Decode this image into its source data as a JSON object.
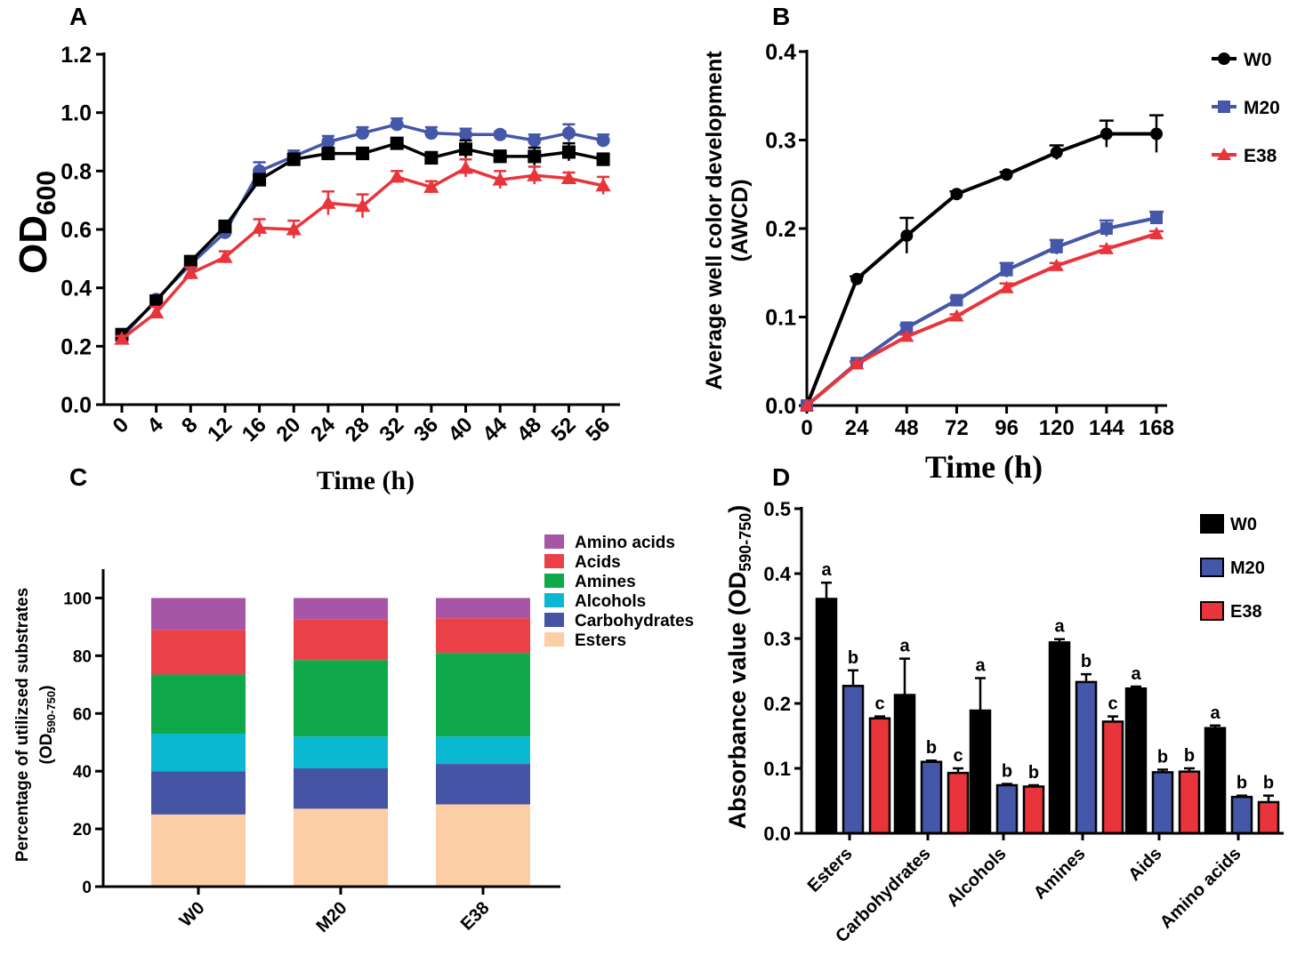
{
  "panel_labels": {
    "a": "A",
    "b": "B",
    "c": "C",
    "d": "D"
  },
  "colors": {
    "W0": "#000000",
    "M20": "#4557a8",
    "E38": "#e8343a",
    "Amino acids": "#a755a6",
    "Acids": "#ea4149",
    "Amines": "#0fa84a",
    "Alcohols": "#0ab8d2",
    "Carbohydrates": "#4554a4",
    "Esters": "#fdcda6"
  },
  "chart_data": [
    {
      "id": "A",
      "type": "line",
      "title": "",
      "xlabel": "Time (h)",
      "ylabel_main": "OD",
      "ylabel_sub": "600",
      "x": [
        0,
        4,
        8,
        12,
        16,
        20,
        24,
        28,
        32,
        36,
        40,
        44,
        48,
        52,
        56
      ],
      "xticks": [
        "0",
        "4",
        "8",
        "12",
        "16",
        "20",
        "24",
        "28",
        "32",
        "36",
        "40",
        "44",
        "48",
        "52",
        "56"
      ],
      "ylim": [
        0,
        1.2
      ],
      "yticks": [
        "0.0",
        "0.2",
        "0.4",
        "0.6",
        "0.8",
        "1.0",
        "1.2"
      ],
      "series": [
        {
          "name": "M20",
          "marker": "circle",
          "values": [
            0.23,
            0.36,
            0.48,
            0.59,
            0.8,
            0.85,
            0.9,
            0.93,
            0.96,
            0.93,
            0.925,
            0.925,
            0.905,
            0.93,
            0.905
          ],
          "errors": [
            0.01,
            0.01,
            0.01,
            0.02,
            0.03,
            0.02,
            0.02,
            0.02,
            0.02,
            0.02,
            0.02,
            0.01,
            0.02,
            0.03,
            0.02
          ]
        },
        {
          "name": "W0",
          "marker": "square",
          "values": [
            0.24,
            0.355,
            0.49,
            0.61,
            0.77,
            0.84,
            0.86,
            0.86,
            0.895,
            0.845,
            0.875,
            0.85,
            0.85,
            0.865,
            0.84
          ],
          "errors": [
            0.01,
            0.01,
            0.01,
            0.02,
            0.02,
            0.02,
            0.02,
            0.02,
            0.01,
            0.02,
            0.03,
            0.02,
            0.03,
            0.03,
            0.02
          ]
        },
        {
          "name": "E38",
          "marker": "triangle",
          "values": [
            0.225,
            0.315,
            0.45,
            0.505,
            0.605,
            0.6,
            0.69,
            0.68,
            0.78,
            0.745,
            0.81,
            0.77,
            0.785,
            0.775,
            0.75
          ],
          "errors": [
            0.01,
            0.02,
            0.02,
            0.02,
            0.03,
            0.03,
            0.04,
            0.04,
            0.02,
            0.02,
            0.03,
            0.03,
            0.03,
            0.02,
            0.03
          ]
        }
      ]
    },
    {
      "id": "B",
      "type": "line",
      "title": "",
      "xlabel": "Time (h)",
      "ylabel_line1": "Average well color development",
      "ylabel_line2": "(AWCD)",
      "x": [
        0,
        24,
        48,
        72,
        96,
        120,
        144,
        168
      ],
      "xticks": [
        "0",
        "24",
        "48",
        "72",
        "96",
        "120",
        "144",
        "168"
      ],
      "ylim": [
        0,
        0.4
      ],
      "yticks": [
        "0.0",
        "0.1",
        "0.2",
        "0.3",
        "0.4"
      ],
      "legend": [
        "W0",
        "M20",
        "E38"
      ],
      "series": [
        {
          "name": "W0",
          "marker": "circle",
          "values": [
            0.0,
            0.143,
            0.192,
            0.239,
            0.261,
            0.286,
            0.307,
            0.307
          ],
          "errors": [
            0.0,
            0.003,
            0.02,
            0.003,
            0.003,
            0.008,
            0.015,
            0.021
          ]
        },
        {
          "name": "M20",
          "marker": "square",
          "values": [
            0.0,
            0.048,
            0.088,
            0.119,
            0.153,
            0.179,
            0.2,
            0.212
          ],
          "errors": [
            0.0,
            0.002,
            0.003,
            0.003,
            0.008,
            0.008,
            0.009,
            0.007
          ]
        },
        {
          "name": "E38",
          "marker": "triangle",
          "values": [
            0.0,
            0.047,
            0.078,
            0.101,
            0.133,
            0.158,
            0.177,
            0.194
          ],
          "errors": [
            0.0,
            0.002,
            0.002,
            0.002,
            0.005,
            0.003,
            0.003,
            0.003
          ]
        }
      ]
    },
    {
      "id": "C",
      "type": "bar",
      "stacked": true,
      "title": "",
      "ylabel_line1": "Percentage of utilizsed substrates",
      "ylabel_line2_main": "(OD",
      "ylabel_line2_sub": "590-750",
      "ylabel_line2_end": ")",
      "categories": [
        "W0",
        "M20",
        "E38"
      ],
      "ylim": [
        0,
        110
      ],
      "yticks": [
        "0",
        "20",
        "40",
        "60",
        "80",
        "100"
      ],
      "legend": [
        "Amino acids",
        "Acids",
        "Amines",
        "Alcohols",
        "Carbohydrates",
        "Esters"
      ],
      "series": [
        {
          "name": "Esters",
          "values": [
            25,
            27,
            28.5
          ]
        },
        {
          "name": "Carbohydrates",
          "values": [
            15,
            14,
            14
          ]
        },
        {
          "name": "Alcohols",
          "values": [
            13,
            11,
            9.5
          ]
        },
        {
          "name": "Amines",
          "values": [
            20.5,
            26.5,
            29
          ]
        },
        {
          "name": "Acids",
          "values": [
            15.5,
            14,
            12
          ]
        },
        {
          "name": "Amino acids",
          "values": [
            11,
            7.5,
            7
          ]
        }
      ]
    },
    {
      "id": "D",
      "type": "bar",
      "title": "",
      "ylabel_main": "Absorbance value (OD",
      "ylabel_sub": "590-750",
      "ylabel_end": ")",
      "categories": [
        "Esters",
        "Carbohydrates",
        "Alcohols",
        "Amines",
        "Aids",
        "Amino acids"
      ],
      "ylim": [
        0,
        0.5
      ],
      "yticks": [
        "0.0",
        "0.1",
        "0.2",
        "0.3",
        "0.4",
        "0.5"
      ],
      "legend": [
        "W0",
        "M20",
        "E38"
      ],
      "series": [
        {
          "name": "W0",
          "values": [
            0.361,
            0.213,
            0.189,
            0.294,
            0.223,
            0.162
          ],
          "errors": [
            0.025,
            0.056,
            0.05,
            0.005,
            0.003,
            0.004
          ],
          "letters": [
            "a",
            "a",
            "a",
            "a",
            "a",
            "a"
          ]
        },
        {
          "name": "M20",
          "values": [
            0.227,
            0.11,
            0.074,
            0.233,
            0.094,
            0.056
          ],
          "errors": [
            0.024,
            0.002,
            0.002,
            0.012,
            0.004,
            0.002
          ],
          "letters": [
            "b",
            "b",
            "b",
            "b",
            "b",
            "b"
          ]
        },
        {
          "name": "E38",
          "values": [
            0.177,
            0.093,
            0.072,
            0.172,
            0.095,
            0.048
          ],
          "errors": [
            0.003,
            0.007,
            0.002,
            0.008,
            0.005,
            0.01
          ],
          "letters": [
            "c",
            "c",
            "b",
            "c",
            "b",
            "b"
          ]
        }
      ]
    }
  ]
}
